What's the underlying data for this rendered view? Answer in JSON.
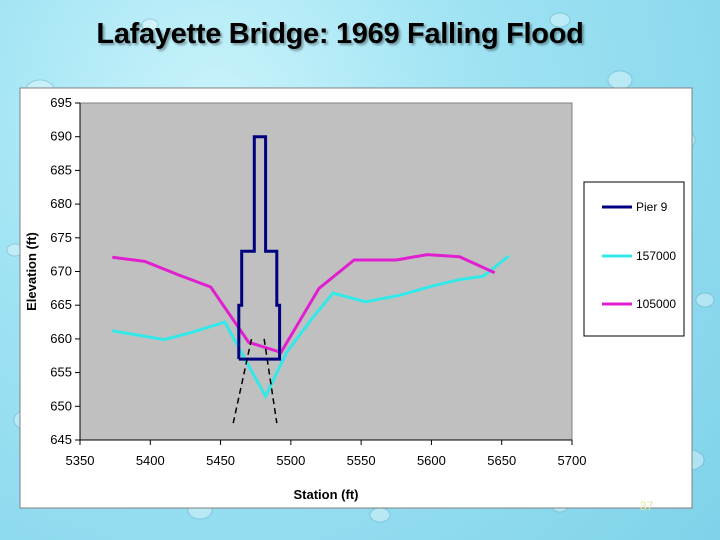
{
  "slide": {
    "title": "Lafayette Bridge: 1969 Falling Flood",
    "page_number": "37"
  },
  "colors": {
    "plot_background": "#c0c0c0",
    "pier": "#000080",
    "series_157000": "#33e8e8",
    "series_105000": "#e020d0",
    "scour_lines": "#000000"
  },
  "chart_data": {
    "type": "line",
    "xlabel": "Station (ft)",
    "ylabel": "Elevation (ft)",
    "xlim": [
      5350,
      5700
    ],
    "ylim": [
      645,
      695
    ],
    "x_ticks": [
      5350,
      5400,
      5450,
      5500,
      5550,
      5600,
      5650,
      5700
    ],
    "y_ticks": [
      645,
      650,
      655,
      660,
      665,
      670,
      675,
      680,
      685,
      690,
      695
    ],
    "grid": false,
    "legend_position": "right",
    "series": [
      {
        "name": "Pier 9",
        "color": "#000080",
        "points": [
          [
            5463,
            657
          ],
          [
            5463,
            665
          ],
          [
            5465,
            665
          ],
          [
            5465,
            673
          ],
          [
            5474,
            673
          ],
          [
            5474,
            690
          ],
          [
            5482,
            690
          ],
          [
            5482,
            673
          ],
          [
            5490,
            673
          ],
          [
            5490,
            665
          ],
          [
            5492,
            665
          ],
          [
            5492,
            657
          ],
          [
            5463,
            657
          ]
        ]
      },
      {
        "name": "157000",
        "color": "#33e8e8",
        "points": [
          [
            5373,
            661.2
          ],
          [
            5393,
            660.5
          ],
          [
            5410,
            659.9
          ],
          [
            5430,
            661
          ],
          [
            5453,
            662.5
          ],
          [
            5470,
            656
          ],
          [
            5482,
            651.5
          ],
          [
            5497,
            658
          ],
          [
            5515,
            663
          ],
          [
            5530,
            666.8
          ],
          [
            5553,
            665.5
          ],
          [
            5578,
            666.5
          ],
          [
            5600,
            667.8
          ],
          [
            5620,
            668.8
          ],
          [
            5637,
            669.3
          ],
          [
            5655,
            672.3
          ]
        ]
      },
      {
        "name": "105000",
        "color": "#e020d0",
        "points": [
          [
            5373,
            672.1
          ],
          [
            5396,
            671.5
          ],
          [
            5420,
            669.5
          ],
          [
            5443,
            667.7
          ],
          [
            5470,
            659.5
          ],
          [
            5493,
            658
          ],
          [
            5520,
            667.5
          ],
          [
            5545,
            671.7
          ],
          [
            5575,
            671.7
          ],
          [
            5597,
            672.5
          ],
          [
            5620,
            672.2
          ],
          [
            5645,
            669.8
          ]
        ]
      }
    ],
    "annotations": [
      {
        "type": "dashed-line",
        "from": [
          5459,
          647.5
        ],
        "to": [
          5472,
          660
        ]
      },
      {
        "type": "dashed-line",
        "from": [
          5481,
          660
        ],
        "to": [
          5490,
          647.5
        ]
      }
    ]
  }
}
